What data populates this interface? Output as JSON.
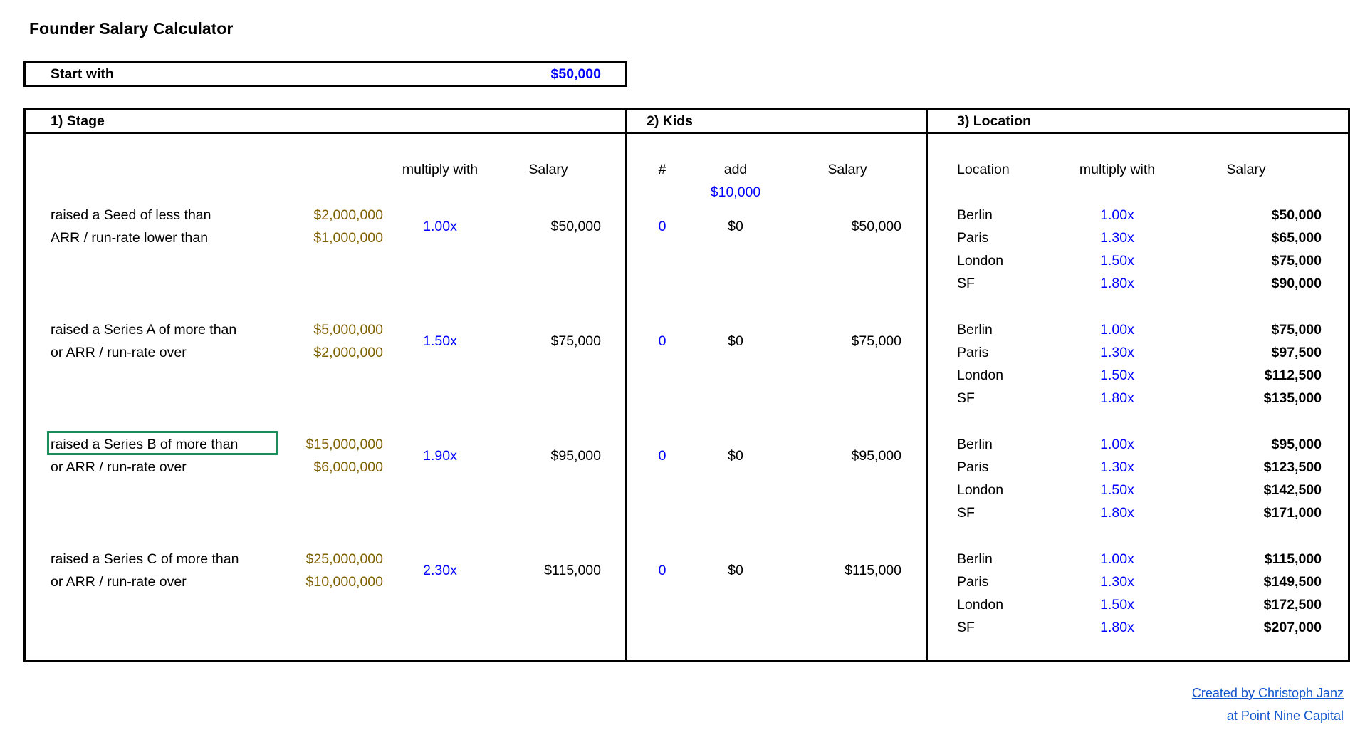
{
  "title": "Founder Salary Calculator",
  "start": {
    "label": "Start with",
    "value": "$50,000"
  },
  "sections": {
    "stage": "1) Stage",
    "kids": "2) Kids",
    "location": "3) Location"
  },
  "headers": {
    "stage_multiply": "multiply with",
    "stage_salary": "Salary",
    "kids_count": "#",
    "kids_add": "add",
    "kids_add_amount": "$10,000",
    "kids_salary": "Salary",
    "location": "Location",
    "location_multiply": "multiply with",
    "location_salary": "Salary"
  },
  "stages": [
    {
      "line1": "raised a Seed of less than",
      "amount1": "$2,000,000",
      "line2": "ARR / run-rate lower than",
      "amount2": "$1,000,000",
      "multiplier": "1.00x",
      "salary": "$50,000",
      "kids": "0",
      "kids_add": "$0",
      "kids_salary": "$50,000",
      "locations": [
        {
          "city": "Berlin",
          "mult": "1.00x",
          "salary": "$50,000"
        },
        {
          "city": "Paris",
          "mult": "1.30x",
          "salary": "$65,000"
        },
        {
          "city": "London",
          "mult": "1.50x",
          "salary": "$75,000"
        },
        {
          "city": "SF",
          "mult": "1.80x",
          "salary": "$90,000"
        }
      ]
    },
    {
      "line1": "raised a Series A of more than",
      "amount1": "$5,000,000",
      "line2": "or ARR / run-rate over",
      "amount2": "$2,000,000",
      "multiplier": "1.50x",
      "salary": "$75,000",
      "kids": "0",
      "kids_add": "$0",
      "kids_salary": "$75,000",
      "locations": [
        {
          "city": "Berlin",
          "mult": "1.00x",
          "salary": "$75,000"
        },
        {
          "city": "Paris",
          "mult": "1.30x",
          "salary": "$97,500"
        },
        {
          "city": "London",
          "mult": "1.50x",
          "salary": "$112,500"
        },
        {
          "city": "SF",
          "mult": "1.80x",
          "salary": "$135,000"
        }
      ]
    },
    {
      "line1": "raised a Series B of more than",
      "amount1": "$15,000,000",
      "line2": "or ARR / run-rate over",
      "amount2": "$6,000,000",
      "multiplier": "1.90x",
      "salary": "$95,000",
      "kids": "0",
      "kids_add": "$0",
      "kids_salary": "$95,000",
      "locations": [
        {
          "city": "Berlin",
          "mult": "1.00x",
          "salary": "$95,000"
        },
        {
          "city": "Paris",
          "mult": "1.30x",
          "salary": "$123,500"
        },
        {
          "city": "London",
          "mult": "1.50x",
          "salary": "$142,500"
        },
        {
          "city": "SF",
          "mult": "1.80x",
          "salary": "$171,000"
        }
      ]
    },
    {
      "line1": "raised a Series C of more than",
      "amount1": "$25,000,000",
      "line2": "or ARR / run-rate over",
      "amount2": "$10,000,000",
      "multiplier": "2.30x",
      "salary": "$115,000",
      "kids": "0",
      "kids_add": "$0",
      "kids_salary": "$115,000",
      "locations": [
        {
          "city": "Berlin",
          "mult": "1.00x",
          "salary": "$115,000"
        },
        {
          "city": "Paris",
          "mult": "1.30x",
          "salary": "$149,500"
        },
        {
          "city": "London",
          "mult": "1.50x",
          "salary": "$172,500"
        },
        {
          "city": "SF",
          "mult": "1.80x",
          "salary": "$207,000"
        }
      ]
    }
  ],
  "selected_cell": "Series B label cell",
  "footer": {
    "line1": "Created by Christoph Janz",
    "line2": "at Point Nine Capital"
  },
  "colors": {
    "input_blue": "#0000ff",
    "threshold_gold": "#7f6000",
    "selection_green": "#1e8c5a",
    "link_blue": "#1155cc"
  }
}
